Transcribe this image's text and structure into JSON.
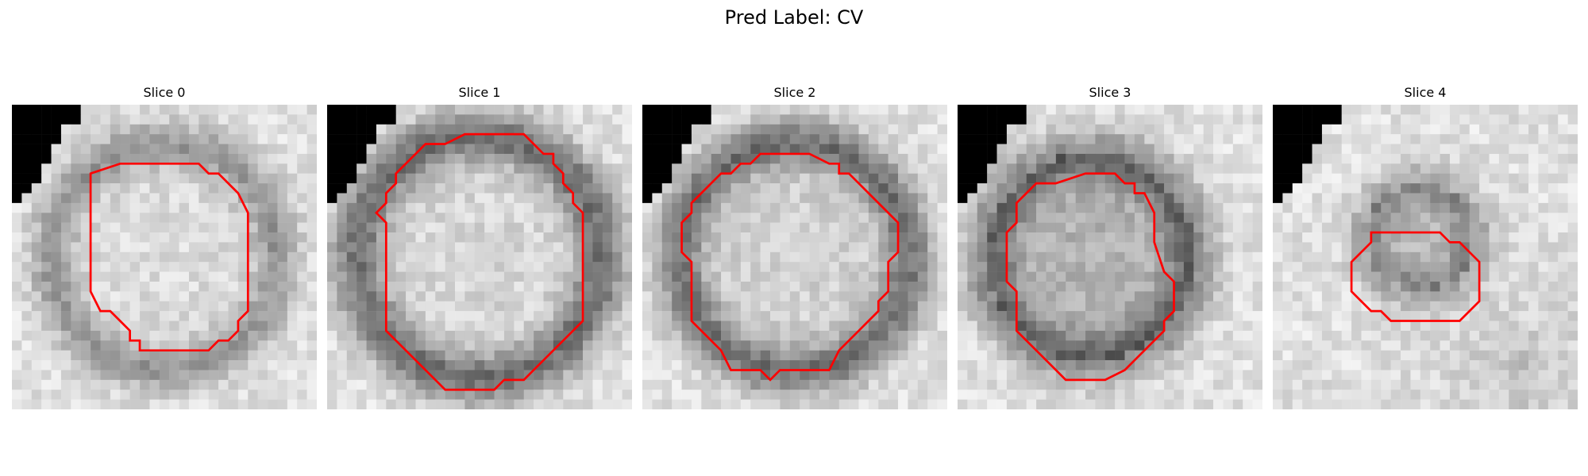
{
  "title": "Pred Label: CV",
  "panels": [
    {
      "label": "Slice 0"
    },
    {
      "label": "Slice 1"
    },
    {
      "label": "Slice 2"
    },
    {
      "label": "Slice 3"
    },
    {
      "label": "Slice 4"
    }
  ],
  "colors": {
    "contour": "#ff0000",
    "background": "#ffffff"
  }
}
